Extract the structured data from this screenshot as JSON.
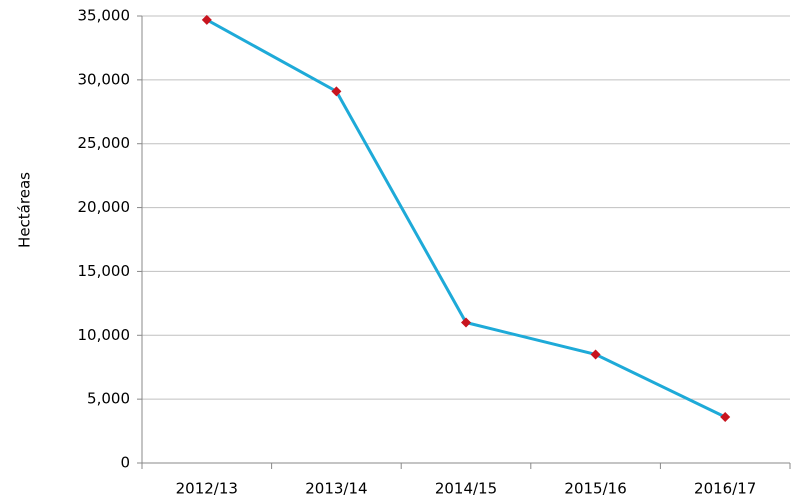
{
  "chart_data": {
    "type": "line",
    "y_label": "Hectáreas",
    "categories": [
      "2012/13",
      "2013/14",
      "2014/15",
      "2015/16",
      "2016/17"
    ],
    "values": [
      34700,
      29100,
      11000,
      8500,
      3600
    ],
    "color": "#1eaad8",
    "marker_color": "#c8141e",
    "ylim": [
      0,
      35000
    ],
    "yticks": [
      0,
      {
        "value": 5000,
        "label": "5,000"
      },
      {
        "value": 10000,
        "label": "10,000"
      },
      {
        "value": 15000,
        "label": "15,000"
      },
      {
        "value": 20000,
        "label": "20,000"
      },
      {
        "value": 25000,
        "label": "25,000"
      },
      {
        "value": 30000,
        "label": "30,000"
      },
      {
        "value": 35000,
        "label": "35,000"
      }
    ],
    "grid": true
  }
}
